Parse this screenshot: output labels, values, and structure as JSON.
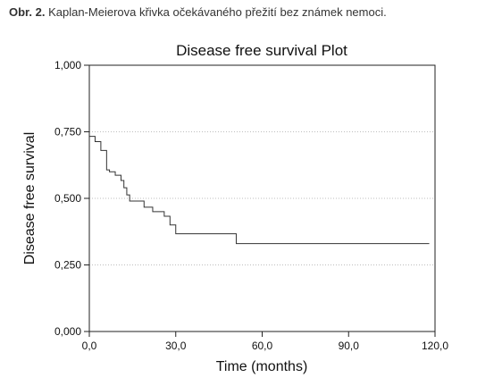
{
  "caption": {
    "label": "Obr. 2.",
    "text": " Kaplan-Meierova křivka očekávaného přežití bez známek nemoci."
  },
  "chart_data": {
    "type": "line",
    "step": true,
    "title": "Disease free survival Plot",
    "xlabel": "Time (months)",
    "ylabel": "Disease free survival",
    "xlim": [
      0,
      120
    ],
    "ylim": [
      0,
      1
    ],
    "x_ticks": [
      0,
      30,
      60,
      90,
      120
    ],
    "x_tick_labels": [
      "0,0",
      "30,0",
      "60,0",
      "90,0",
      "120,0"
    ],
    "y_ticks": [
      0,
      0.25,
      0.5,
      0.75,
      1
    ],
    "y_tick_labels": [
      "0,000",
      "0,250",
      "0,500",
      "0,750",
      "1,000"
    ],
    "grid": "horizontal-dotted",
    "line_color": "#333333",
    "series": [
      {
        "x": [
          0,
          2,
          4,
          6,
          7,
          9,
          11,
          12,
          13,
          14,
          19,
          22,
          26,
          28,
          30,
          51,
          118
        ],
        "y": [
          0.733,
          0.713,
          0.68,
          0.607,
          0.6,
          0.587,
          0.567,
          0.54,
          0.513,
          0.49,
          0.467,
          0.45,
          0.433,
          0.4,
          0.367,
          0.33,
          0.33
        ]
      }
    ]
  }
}
